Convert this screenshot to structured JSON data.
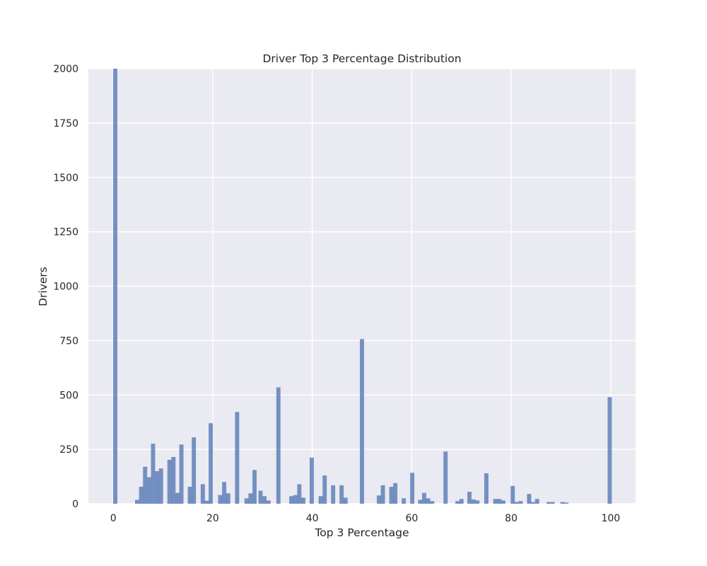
{
  "chart_data": {
    "type": "bar",
    "title": "Driver Top 3 Percentage Distribution",
    "xlabel": "Top 3 Percentage",
    "ylabel": "Drivers",
    "xlim": [
      -5,
      105
    ],
    "ylim": [
      0,
      2000
    ],
    "xticks": [
      0,
      20,
      40,
      60,
      80,
      100
    ],
    "yticks": [
      0,
      250,
      500,
      750,
      1000,
      1250,
      1500,
      1750,
      2000
    ],
    "grid": true,
    "bar_color": "#4c72b0",
    "background": "#eaeaf2",
    "bin_width": 0.84,
    "x": [
      0.4,
      4.8,
      5.6,
      6.4,
      7.2,
      8.0,
      8.8,
      9.6,
      11.3,
      12.1,
      12.9,
      13.7,
      15.4,
      16.2,
      18.0,
      18.8,
      19.6,
      21.5,
      22.3,
      23.1,
      24.9,
      26.8,
      27.6,
      28.4,
      29.6,
      30.4,
      31.2,
      33.2,
      35.8,
      36.6,
      37.4,
      38.2,
      39.9,
      41.7,
      42.5,
      44.2,
      45.9,
      46.7,
      50.0,
      53.4,
      54.2,
      55.9,
      56.7,
      58.4,
      60.1,
      61.7,
      62.5,
      63.3,
      64.1,
      66.8,
      69.2,
      70.0,
      71.6,
      72.4,
      73.2,
      75.0,
      76.8,
      77.6,
      78.4,
      80.3,
      81.1,
      81.9,
      83.6,
      84.4,
      85.2,
      87.5,
      88.3,
      90.3,
      91.1,
      99.8
    ],
    "values": [
      2000,
      18,
      78,
      170,
      122,
      276,
      150,
      162,
      202,
      215,
      50,
      272,
      78,
      305,
      90,
      14,
      370,
      40,
      100,
      48,
      422,
      25,
      48,
      155,
      60,
      35,
      15,
      535,
      35,
      40,
      90,
      28,
      212,
      35,
      130,
      85,
      85,
      28,
      757,
      38,
      85,
      78,
      95,
      25,
      142,
      18,
      50,
      25,
      12,
      240,
      12,
      22,
      55,
      20,
      15,
      140,
      22,
      22,
      15,
      82,
      8,
      12,
      45,
      8,
      22,
      8,
      8,
      8,
      5,
      490
    ]
  }
}
